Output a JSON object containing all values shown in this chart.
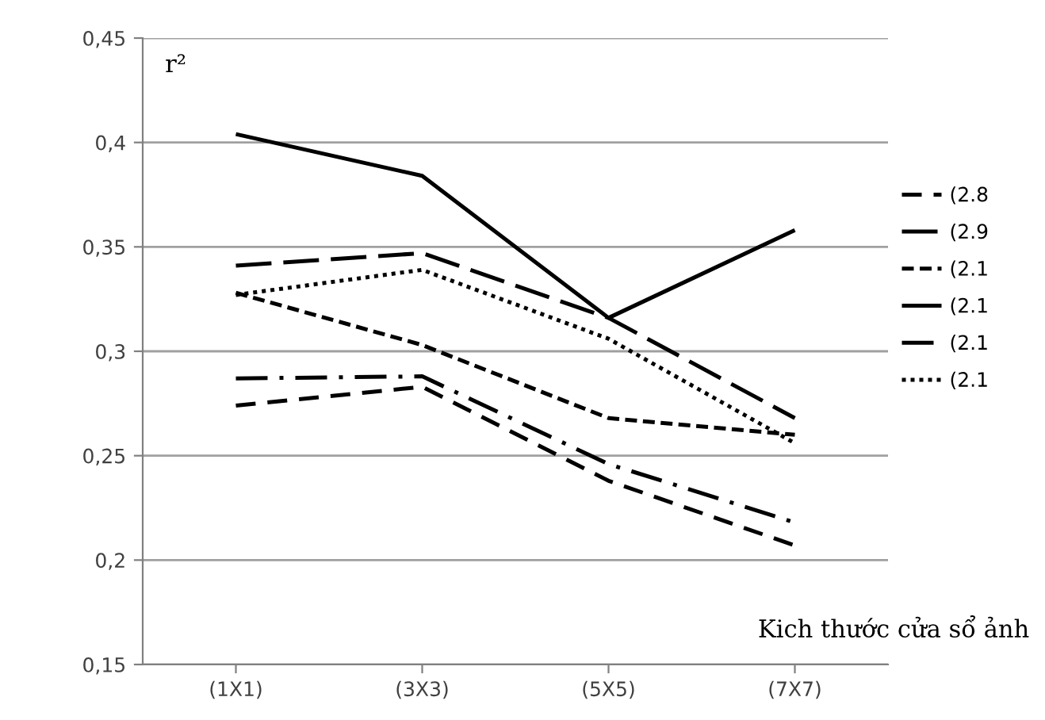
{
  "chart_data": {
    "type": "line",
    "categories": [
      "(1X1)",
      "(3X3)",
      "(5X5)",
      "(7X7)"
    ],
    "ylabel": "r²",
    "xlabel": "Kich thước cửa sổ ảnh",
    "ylim": [
      0.15,
      0.45
    ],
    "yticks": [
      {
        "value": 0.15,
        "label": "0,15"
      },
      {
        "value": 0.2,
        "label": "0,2"
      },
      {
        "value": 0.25,
        "label": "0,25"
      },
      {
        "value": 0.3,
        "label": "0,3"
      },
      {
        "value": 0.35,
        "label": "0,35"
      },
      {
        "value": 0.4,
        "label": "0,4"
      },
      {
        "value": 0.45,
        "label": "0,45"
      }
    ],
    "grid": "y",
    "legend": "right",
    "marker": "none",
    "series": [
      {
        "name": "(2.8",
        "color": "#000000",
        "line_style": "dashed",
        "values": [
          0.274,
          0.283,
          0.238,
          0.207
        ]
      },
      {
        "name": "(2.9",
        "color": "#000000",
        "line_style": "long dashed",
        "values": [
          0.341,
          0.347,
          0.316,
          0.268
        ]
      },
      {
        "name": "(2.1",
        "color": "#000000",
        "line_style": "short dashed",
        "values": [
          0.328,
          0.303,
          0.268,
          0.26
        ]
      },
      {
        "name": "(2.1",
        "color": "#000000",
        "line_style": "solid",
        "values": [
          0.404,
          0.384,
          0.316,
          0.358
        ]
      },
      {
        "name": "(2.1",
        "color": "#000000",
        "line_style": "dashdot",
        "values": [
          0.287,
          0.288,
          0.246,
          0.218
        ]
      },
      {
        "name": "(2.1",
        "color": "#000000",
        "line_style": "dotted",
        "values": [
          0.327,
          0.339,
          0.306,
          0.256
        ]
      }
    ]
  }
}
